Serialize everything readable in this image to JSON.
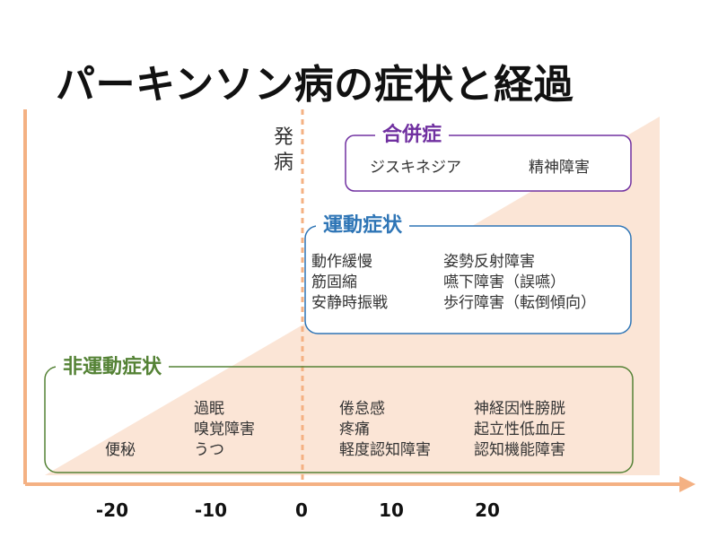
{
  "title": "パーキンソン病の症状と経過",
  "onset_label": [
    "発",
    "病"
  ],
  "axis": {
    "ticks": [
      "-20",
      "-10",
      "0",
      "10",
      "20"
    ]
  },
  "groups": {
    "complications": {
      "title": "合併症",
      "color": "#7030A0",
      "columns": [
        [
          "ジスキネジア"
        ],
        [
          "精神障害"
        ]
      ]
    },
    "motor": {
      "title": "運動症状",
      "color": "#2E75B6",
      "columns": [
        [
          "動作緩慢",
          "筋固縮",
          "安静時振戦"
        ],
        [
          "姿勢反射障害",
          "嚥下障害（誤嚥）",
          "歩行障害（転倒傾向）"
        ]
      ]
    },
    "non_motor": {
      "title": "非運動症状",
      "color": "#548235",
      "columns": [
        [
          "便秘"
        ],
        [
          "過眠",
          "嗅覚障害",
          "うつ"
        ],
        [
          "倦怠感",
          "疼痛",
          "軽度認知障害"
        ],
        [
          "神経因性膀胱",
          "起立性低血圧",
          "認知機能障害"
        ]
      ]
    }
  },
  "colors": {
    "axis": "#F4B183",
    "progression_fill": "#FBE5D6",
    "onset_line": "#F4B183"
  }
}
